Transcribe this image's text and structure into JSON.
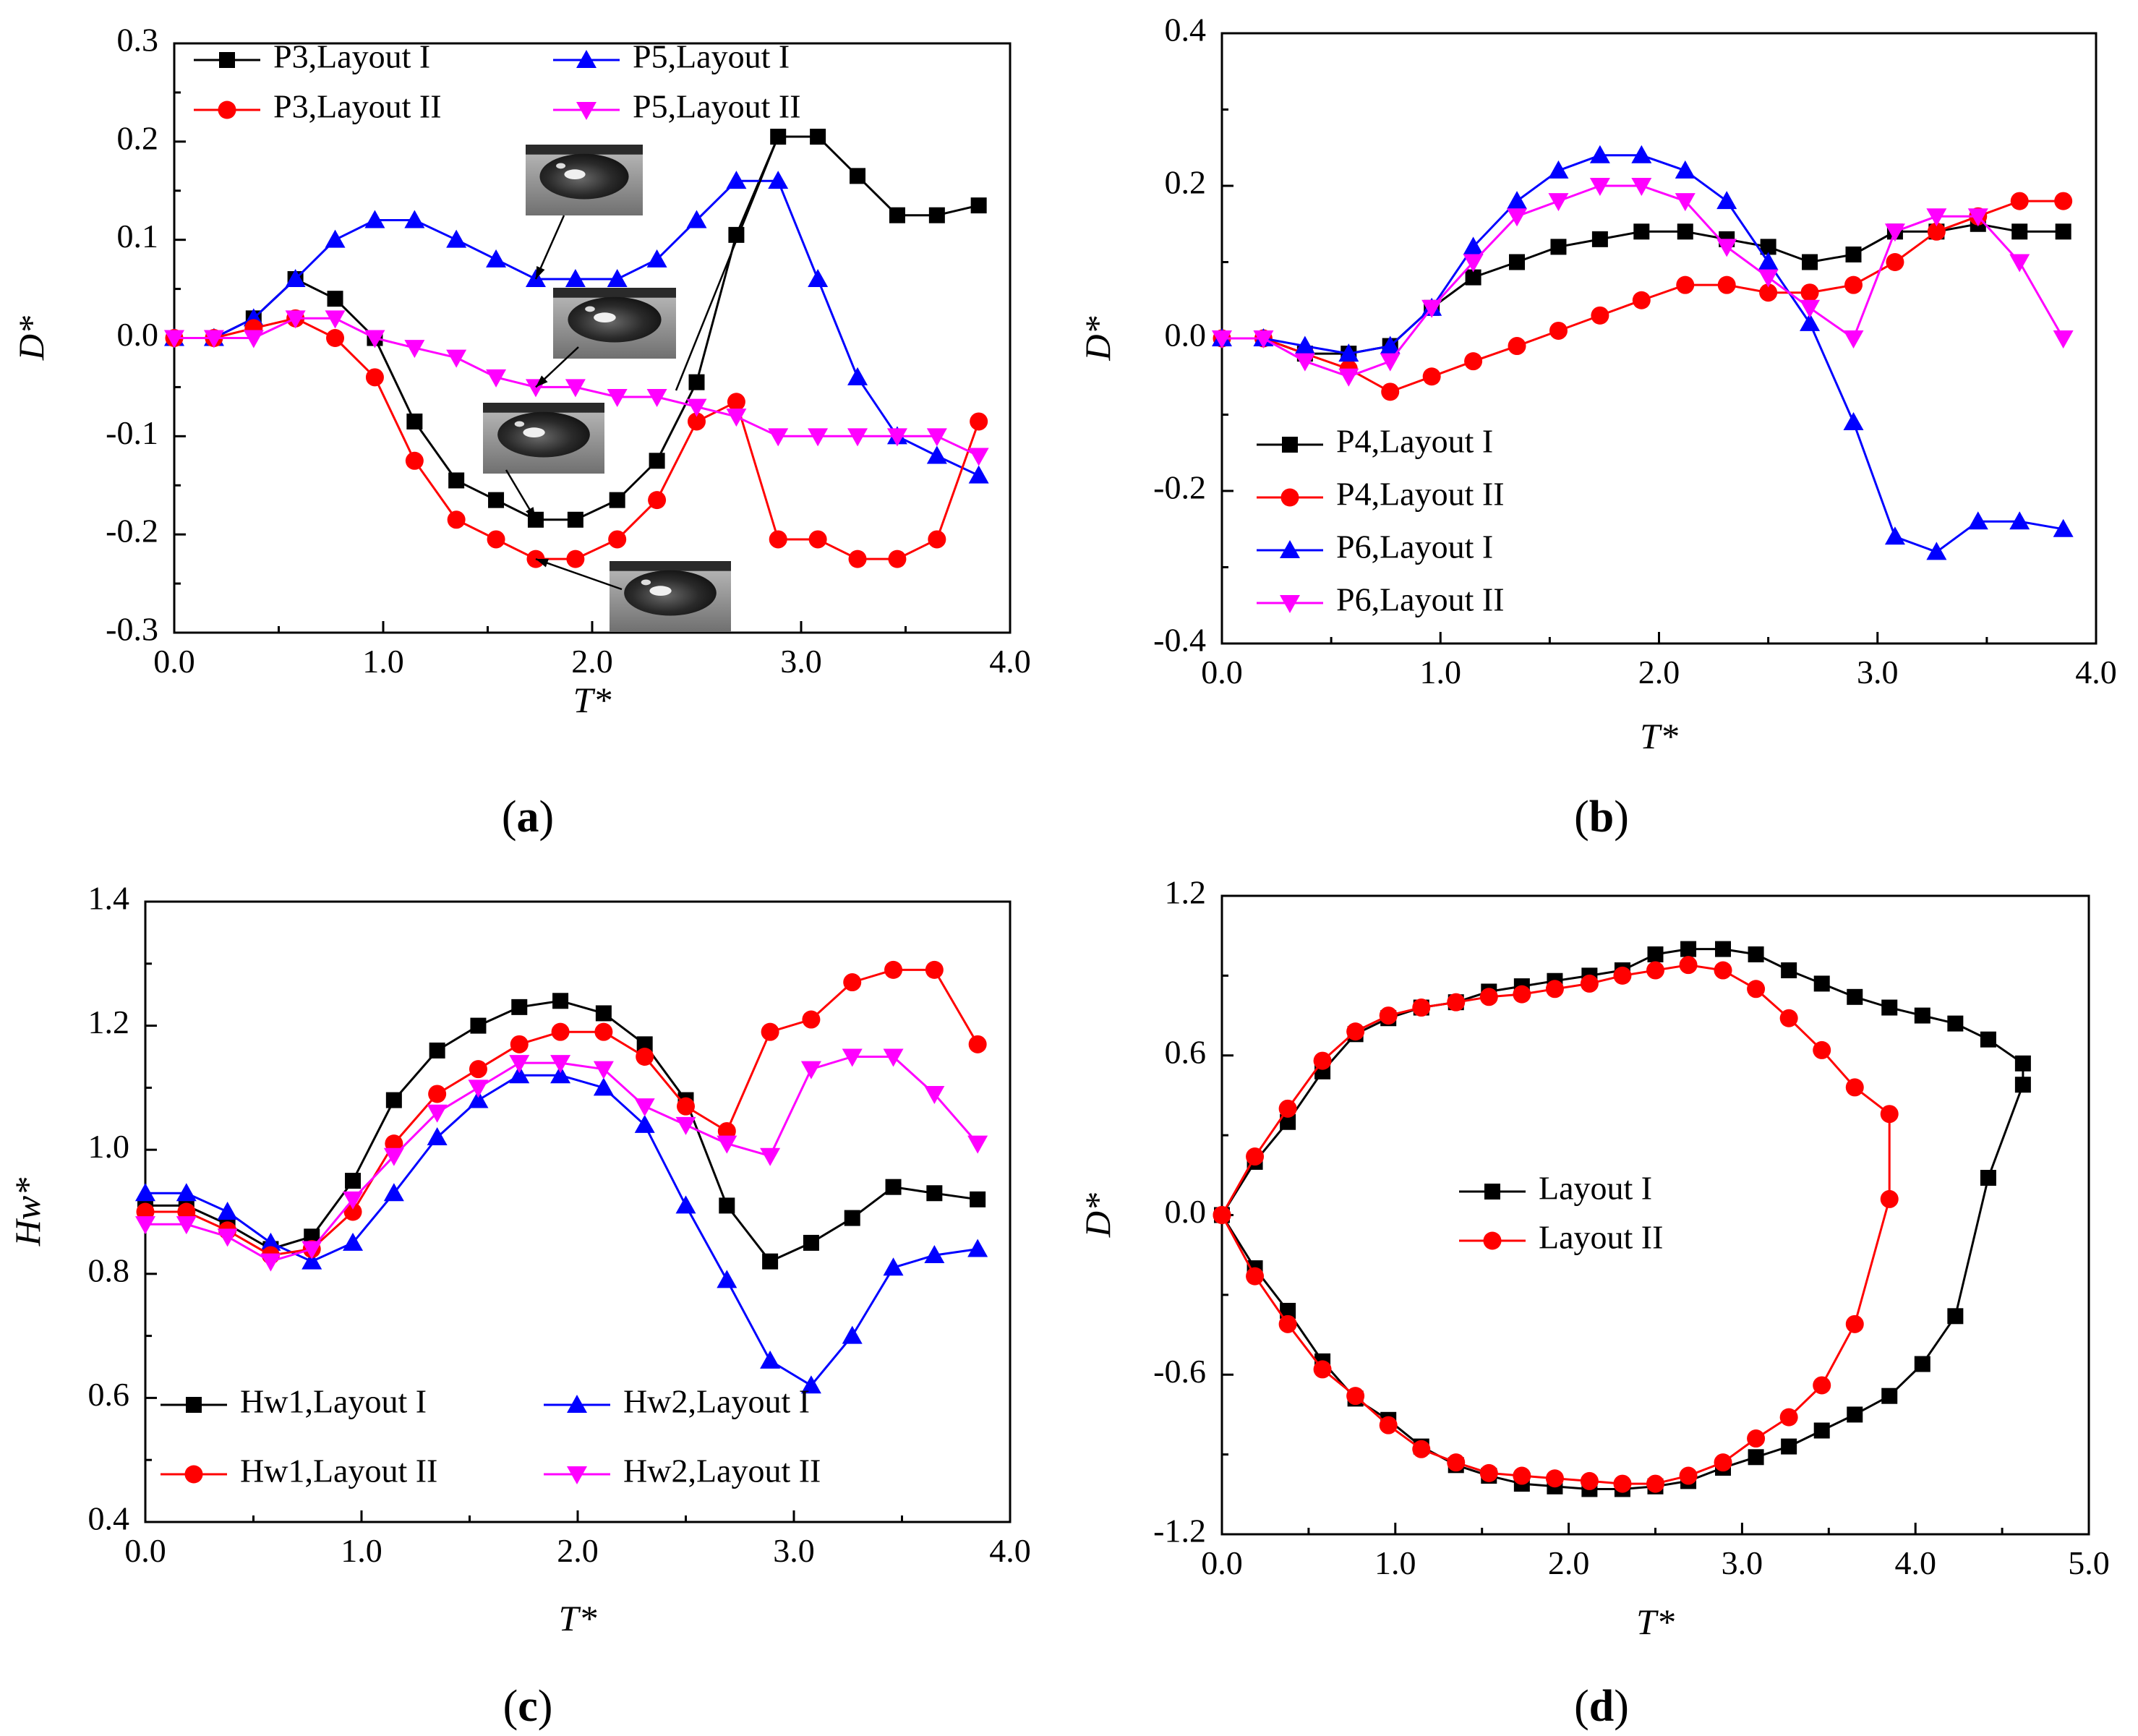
{
  "colors": {
    "black": "#000000",
    "red": "#ff0000",
    "blue": "#0000ff",
    "magenta": "#ff00ff"
  },
  "chart_data": [
    {
      "id": "a",
      "type": "line",
      "panel_label": "(a)",
      "panel_letter": "a",
      "xlabel": "T*",
      "ylabel": "D*",
      "xlim": [
        0,
        4
      ],
      "ylim": [
        -0.3,
        0.3
      ],
      "xticks": [
        0,
        1,
        2,
        3,
        4
      ],
      "xtick_labels": [
        "0.0",
        "1.0",
        "2.0",
        "3.0",
        "4.0"
      ],
      "yticks": [
        -0.3,
        -0.2,
        -0.1,
        0,
        0.1,
        0.2,
        0.3
      ],
      "ytick_labels": [
        "-0.3",
        "-0.2",
        "-0.1",
        "0.0",
        "0.1",
        "0.2",
        "0.3"
      ],
      "legend_position": "top",
      "legend_columns": 2,
      "insets": "four photographs of a water droplet with arrows pointing to curve points",
      "series": [
        {
          "name": "P3,Layout I",
          "color": "#000000",
          "marker": "square",
          "x": [
            0,
            0.19,
            0.38,
            0.58,
            0.77,
            0.96,
            1.15,
            1.35,
            1.54,
            1.73,
            1.92,
            2.12,
            2.31,
            2.5,
            2.69,
            2.89,
            3.08,
            3.27,
            3.46,
            3.65,
            3.85
          ],
          "y": [
            0,
            0,
            0.02,
            0.06,
            0.04,
            0,
            -0.085,
            -0.145,
            -0.165,
            -0.185,
            -0.185,
            -0.165,
            -0.125,
            -0.045,
            0.105,
            0.205,
            0.205,
            0.165,
            0.125,
            0.125,
            0.135
          ]
        },
        {
          "name": "P5,Layout I",
          "color": "#0000ff",
          "marker": "triangle-up",
          "x": [
            0,
            0.19,
            0.38,
            0.58,
            0.77,
            0.96,
            1.15,
            1.35,
            1.54,
            1.73,
            1.92,
            2.12,
            2.31,
            2.5,
            2.69,
            2.89,
            3.08,
            3.27,
            3.46,
            3.65,
            3.85
          ],
          "y": [
            0,
            0,
            0.02,
            0.06,
            0.1,
            0.12,
            0.12,
            0.1,
            0.08,
            0.06,
            0.06,
            0.06,
            0.08,
            0.12,
            0.16,
            0.16,
            0.06,
            -0.04,
            -0.1,
            -0.12,
            -0.14
          ]
        },
        {
          "name": "P3,Layout II",
          "color": "#ff0000",
          "marker": "circle",
          "x": [
            0,
            0.19,
            0.38,
            0.58,
            0.77,
            0.96,
            1.15,
            1.35,
            1.54,
            1.73,
            1.92,
            2.12,
            2.31,
            2.5,
            2.69,
            2.89,
            3.08,
            3.27,
            3.46,
            3.65,
            3.85
          ],
          "y": [
            0,
            0,
            0.01,
            0.02,
            0,
            -0.04,
            -0.125,
            -0.185,
            -0.205,
            -0.225,
            -0.225,
            -0.205,
            -0.165,
            -0.085,
            -0.065,
            -0.205,
            -0.205,
            -0.225,
            -0.225,
            -0.205,
            -0.085
          ]
        },
        {
          "name": "P5,Layout II",
          "color": "#ff00ff",
          "marker": "triangle-down",
          "x": [
            0,
            0.19,
            0.38,
            0.58,
            0.77,
            0.96,
            1.15,
            1.35,
            1.54,
            1.73,
            1.92,
            2.12,
            2.31,
            2.5,
            2.69,
            2.89,
            3.08,
            3.27,
            3.46,
            3.65,
            3.85
          ],
          "y": [
            0,
            0,
            0,
            0.02,
            0.02,
            0,
            -0.01,
            -0.02,
            -0.04,
            -0.05,
            -0.05,
            -0.06,
            -0.06,
            -0.07,
            -0.08,
            -0.1,
            -0.1,
            -0.1,
            -0.1,
            -0.1,
            -0.12
          ]
        }
      ]
    },
    {
      "id": "b",
      "type": "line",
      "panel_label": "(b)",
      "panel_letter": "b",
      "xlabel": "T*",
      "ylabel": "D*",
      "xlim": [
        0,
        4
      ],
      "ylim": [
        -0.4,
        0.4
      ],
      "xticks": [
        0,
        1,
        2,
        3,
        4
      ],
      "xtick_labels": [
        "0.0",
        "1.0",
        "2.0",
        "3.0",
        "4.0"
      ],
      "yticks": [
        -0.4,
        -0.2,
        0,
        0.2,
        0.4
      ],
      "ytick_labels": [
        "-0.4",
        "-0.2",
        "0.0",
        "0.2",
        "0.4"
      ],
      "legend_position": "bottom-left",
      "legend_columns": 1,
      "series": [
        {
          "name": "P4,Layout I",
          "color": "#000000",
          "marker": "square",
          "x": [
            0,
            0.19,
            0.38,
            0.58,
            0.77,
            0.96,
            1.15,
            1.35,
            1.54,
            1.73,
            1.92,
            2.12,
            2.31,
            2.5,
            2.69,
            2.89,
            3.08,
            3.27,
            3.46,
            3.65,
            3.85
          ],
          "y": [
            0,
            0,
            -0.02,
            -0.02,
            -0.01,
            0.04,
            0.08,
            0.1,
            0.12,
            0.13,
            0.14,
            0.14,
            0.13,
            0.12,
            0.1,
            0.11,
            0.14,
            0.14,
            0.15,
            0.14,
            0.14
          ]
        },
        {
          "name": "P4,Layout II",
          "color": "#ff0000",
          "marker": "circle",
          "x": [
            0,
            0.19,
            0.38,
            0.58,
            0.77,
            0.96,
            1.15,
            1.35,
            1.54,
            1.73,
            1.92,
            2.12,
            2.31,
            2.5,
            2.69,
            2.89,
            3.08,
            3.27,
            3.46,
            3.65,
            3.85
          ],
          "y": [
            0,
            0,
            -0.02,
            -0.04,
            -0.07,
            -0.05,
            -0.03,
            -0.01,
            0.01,
            0.03,
            0.05,
            0.07,
            0.07,
            0.06,
            0.06,
            0.07,
            0.1,
            0.14,
            0.16,
            0.18,
            0.18
          ]
        },
        {
          "name": "P6,Layout I",
          "color": "#0000ff",
          "marker": "triangle-up",
          "x": [
            0,
            0.19,
            0.38,
            0.58,
            0.77,
            0.96,
            1.15,
            1.35,
            1.54,
            1.73,
            1.92,
            2.12,
            2.31,
            2.5,
            2.69,
            2.89,
            3.08,
            3.27,
            3.46,
            3.65,
            3.85
          ],
          "y": [
            0,
            0,
            -0.01,
            -0.02,
            -0.01,
            0.04,
            0.12,
            0.18,
            0.22,
            0.24,
            0.24,
            0.22,
            0.18,
            0.1,
            0.02,
            -0.11,
            -0.26,
            -0.28,
            -0.24,
            -0.24,
            -0.25
          ]
        },
        {
          "name": "P6,Layout II",
          "color": "#ff00ff",
          "marker": "triangle-down",
          "x": [
            0,
            0.19,
            0.38,
            0.58,
            0.77,
            0.96,
            1.15,
            1.35,
            1.54,
            1.73,
            1.92,
            2.12,
            2.31,
            2.5,
            2.69,
            2.89,
            3.08,
            3.27,
            3.46,
            3.65,
            3.85
          ],
          "y": [
            0,
            0,
            -0.03,
            -0.05,
            -0.03,
            0.04,
            0.1,
            0.16,
            0.18,
            0.2,
            0.2,
            0.18,
            0.12,
            0.08,
            0.04,
            0,
            0.14,
            0.16,
            0.16,
            0.1,
            0
          ]
        }
      ]
    },
    {
      "id": "c",
      "type": "line",
      "panel_label": "(c)",
      "panel_letter": "c",
      "xlabel": "T*",
      "ylabel": "Hw*",
      "xlim": [
        0,
        4
      ],
      "ylim": [
        0.4,
        1.4
      ],
      "xticks": [
        0,
        1,
        2,
        3,
        4
      ],
      "xtick_labels": [
        "0.0",
        "1.0",
        "2.0",
        "3.0",
        "4.0"
      ],
      "yticks": [
        0.4,
        0.6,
        0.8,
        1.0,
        1.2,
        1.4
      ],
      "ytick_labels": [
        "0.4",
        "0.6",
        "0.8",
        "1.0",
        "1.2",
        "1.4"
      ],
      "legend_position": "bottom",
      "legend_columns": 2,
      "series": [
        {
          "name": "Hw1,Layout I",
          "color": "#000000",
          "marker": "square",
          "x": [
            0,
            0.19,
            0.38,
            0.58,
            0.77,
            0.96,
            1.15,
            1.35,
            1.54,
            1.73,
            1.92,
            2.12,
            2.31,
            2.5,
            2.69,
            2.89,
            3.08,
            3.27,
            3.46,
            3.65,
            3.85
          ],
          "y": [
            0.91,
            0.91,
            0.88,
            0.84,
            0.86,
            0.95,
            1.08,
            1.16,
            1.2,
            1.23,
            1.24,
            1.22,
            1.17,
            1.08,
            0.91,
            0.82,
            0.85,
            0.89,
            0.94,
            0.93,
            0.92
          ]
        },
        {
          "name": "Hw2,Layout I",
          "color": "#0000ff",
          "marker": "triangle-up",
          "x": [
            0,
            0.19,
            0.38,
            0.58,
            0.77,
            0.96,
            1.15,
            1.35,
            1.54,
            1.73,
            1.92,
            2.12,
            2.31,
            2.5,
            2.69,
            2.89,
            3.08,
            3.27,
            3.46,
            3.65,
            3.85
          ],
          "y": [
            0.93,
            0.93,
            0.9,
            0.85,
            0.82,
            0.85,
            0.93,
            1.02,
            1.08,
            1.12,
            1.12,
            1.1,
            1.04,
            0.91,
            0.79,
            0.66,
            0.62,
            0.7,
            0.81,
            0.83,
            0.84
          ]
        },
        {
          "name": "Hw1,Layout II",
          "color": "#ff0000",
          "marker": "circle",
          "x": [
            0,
            0.19,
            0.38,
            0.58,
            0.77,
            0.96,
            1.15,
            1.35,
            1.54,
            1.73,
            1.92,
            2.12,
            2.31,
            2.5,
            2.69,
            2.89,
            3.08,
            3.27,
            3.46,
            3.65,
            3.85
          ],
          "y": [
            0.9,
            0.9,
            0.87,
            0.83,
            0.84,
            0.9,
            1.01,
            1.09,
            1.13,
            1.17,
            1.19,
            1.19,
            1.15,
            1.07,
            1.03,
            1.19,
            1.21,
            1.27,
            1.29,
            1.29,
            1.17
          ]
        },
        {
          "name": "Hw2,Layout II",
          "color": "#ff00ff",
          "marker": "triangle-down",
          "x": [
            0,
            0.19,
            0.38,
            0.58,
            0.77,
            0.96,
            1.15,
            1.35,
            1.54,
            1.73,
            1.92,
            2.12,
            2.31,
            2.5,
            2.69,
            2.89,
            3.08,
            3.27,
            3.46,
            3.65,
            3.85
          ],
          "y": [
            0.88,
            0.88,
            0.86,
            0.82,
            0.84,
            0.92,
            0.99,
            1.06,
            1.1,
            1.14,
            1.14,
            1.13,
            1.07,
            1.04,
            1.01,
            0.99,
            1.13,
            1.15,
            1.15,
            1.09,
            1.01
          ]
        }
      ]
    },
    {
      "id": "d",
      "type": "line",
      "panel_label": "(d)",
      "panel_letter": "d",
      "xlabel": "T*",
      "ylabel": "D*",
      "xlim": [
        0,
        5
      ],
      "ylim": [
        -1.2,
        1.2
      ],
      "xticks": [
        0,
        1,
        2,
        3,
        4,
        5
      ],
      "xtick_labels": [
        "0.0",
        "1.0",
        "2.0",
        "3.0",
        "4.0",
        "5.0"
      ],
      "yticks": [
        -1.2,
        -0.6,
        0,
        0.6,
        1.2
      ],
      "ytick_labels": [
        "-1.2",
        "-0.6",
        "0.0",
        "0.6",
        "1.2"
      ],
      "legend_position": "center",
      "legend_columns": 1,
      "series": [
        {
          "name": "Layout I",
          "color": "#000000",
          "marker": "square",
          "x": [
            0,
            0.19,
            0.38,
            0.58,
            0.77,
            0.96,
            1.15,
            1.35,
            1.54,
            1.73,
            1.92,
            2.12,
            2.31,
            2.5,
            2.69,
            2.89,
            3.08,
            3.27,
            3.46,
            3.65,
            3.85,
            4.04,
            4.23,
            4.42,
            4.62,
            4.62,
            4.42,
            4.23,
            4.04,
            3.85,
            3.65,
            3.46,
            3.27,
            3.08,
            2.89,
            2.69,
            2.5,
            2.31,
            2.12,
            1.92,
            1.73,
            1.54,
            1.35,
            1.15,
            0.96,
            0.77,
            0.58,
            0.38,
            0.19,
            0
          ],
          "y": [
            0,
            0.2,
            0.35,
            0.54,
            0.68,
            0.74,
            0.78,
            0.8,
            0.84,
            0.86,
            0.88,
            0.9,
            0.92,
            0.98,
            1.0,
            1.0,
            0.98,
            0.92,
            0.87,
            0.82,
            0.78,
            0.75,
            0.72,
            0.66,
            0.57,
            0.49,
            0.14,
            -0.38,
            -0.56,
            -0.68,
            -0.75,
            -0.81,
            -0.87,
            -0.91,
            -0.95,
            -1.0,
            -1.02,
            -1.03,
            -1.03,
            -1.02,
            -1.01,
            -0.98,
            -0.94,
            -0.87,
            -0.77,
            -0.69,
            -0.55,
            -0.36,
            -0.2,
            0
          ]
        },
        {
          "name": "Layout II",
          "color": "#ff0000",
          "marker": "circle",
          "x": [
            0,
            0.19,
            0.38,
            0.58,
            0.77,
            0.96,
            1.15,
            1.35,
            1.54,
            1.73,
            1.92,
            2.12,
            2.31,
            2.5,
            2.69,
            2.89,
            3.08,
            3.27,
            3.46,
            3.65,
            3.85,
            3.85,
            3.65,
            3.46,
            3.27,
            3.08,
            2.89,
            2.69,
            2.5,
            2.31,
            2.12,
            1.92,
            1.73,
            1.54,
            1.35,
            1.15,
            0.96,
            0.77,
            0.58,
            0.38,
            0.19,
            0
          ],
          "y": [
            0,
            0.22,
            0.4,
            0.58,
            0.69,
            0.75,
            0.78,
            0.8,
            0.82,
            0.83,
            0.85,
            0.87,
            0.9,
            0.92,
            0.94,
            0.92,
            0.85,
            0.74,
            0.62,
            0.48,
            0.38,
            0.06,
            -0.41,
            -0.64,
            -0.76,
            -0.84,
            -0.93,
            -0.98,
            -1.01,
            -1.01,
            -1.0,
            -0.99,
            -0.98,
            -0.97,
            -0.93,
            -0.88,
            -0.79,
            -0.68,
            -0.58,
            -0.41,
            -0.23,
            0
          ]
        }
      ]
    }
  ]
}
